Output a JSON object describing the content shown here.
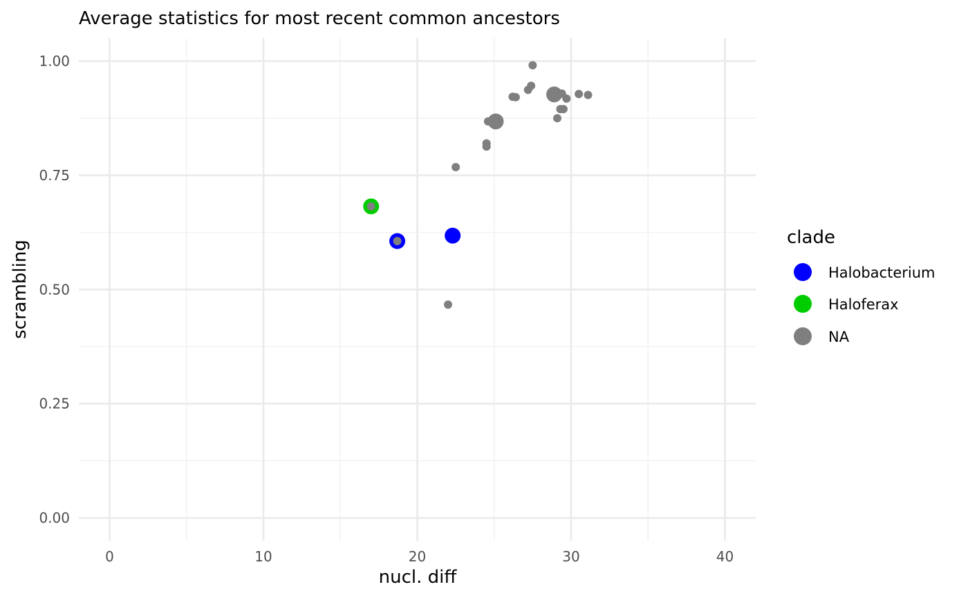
{
  "chart_data": {
    "type": "scatter",
    "title": "Average statistics for most recent common ancestors",
    "xlabel": "nucl. diff",
    "ylabel": "scrambling",
    "xlim": [
      -2,
      42
    ],
    "ylim": [
      -0.04,
      1.05
    ],
    "x_ticks": [
      0,
      10,
      20,
      30,
      40
    ],
    "x_tick_labels": [
      "0",
      "10",
      "20",
      "30",
      "40"
    ],
    "y_ticks": [
      0.0,
      0.25,
      0.5,
      0.75,
      1.0
    ],
    "y_tick_labels": [
      "0.00",
      "0.25",
      "0.50",
      "0.75",
      "1.00"
    ],
    "grid": true,
    "legend": {
      "title": "clade",
      "placement": "right",
      "entries": [
        {
          "label": "Halobacterium",
          "color": "#0000ff"
        },
        {
          "label": "Haloferax",
          "color": "#00cd00"
        },
        {
          "label": "NA",
          "color": "#7f7f7f"
        }
      ]
    },
    "series": [
      {
        "name": "Halobacterium",
        "color": "#0000ff",
        "points": [
          {
            "x": 18.7,
            "y": 0.606,
            "size": "large"
          },
          {
            "x": 22.3,
            "y": 0.618,
            "size": "large"
          }
        ]
      },
      {
        "name": "Haloferax",
        "color": "#00cd00",
        "points": [
          {
            "x": 17.0,
            "y": 0.682,
            "size": "large"
          }
        ]
      },
      {
        "name": "NA",
        "color": "#7f7f7f",
        "points": [
          {
            "x": 17.0,
            "y": 0.682,
            "size": "small"
          },
          {
            "x": 18.7,
            "y": 0.606,
            "size": "small"
          },
          {
            "x": 22.0,
            "y": 0.467,
            "size": "small"
          },
          {
            "x": 22.5,
            "y": 0.768,
            "size": "small"
          },
          {
            "x": 24.5,
            "y": 0.813,
            "size": "small"
          },
          {
            "x": 24.5,
            "y": 0.82,
            "size": "small"
          },
          {
            "x": 24.6,
            "y": 0.868,
            "size": "small"
          },
          {
            "x": 25.1,
            "y": 0.868,
            "size": "large"
          },
          {
            "x": 26.2,
            "y": 0.922,
            "size": "small"
          },
          {
            "x": 26.4,
            "y": 0.921,
            "size": "small"
          },
          {
            "x": 27.2,
            "y": 0.937,
            "size": "small"
          },
          {
            "x": 27.4,
            "y": 0.946,
            "size": "small"
          },
          {
            "x": 27.5,
            "y": 0.991,
            "size": "small"
          },
          {
            "x": 28.9,
            "y": 0.927,
            "size": "large"
          },
          {
            "x": 29.1,
            "y": 0.875,
            "size": "small"
          },
          {
            "x": 29.3,
            "y": 0.895,
            "size": "small"
          },
          {
            "x": 29.4,
            "y": 0.929,
            "size": "small"
          },
          {
            "x": 29.5,
            "y": 0.895,
            "size": "small"
          },
          {
            "x": 29.7,
            "y": 0.918,
            "size": "small"
          },
          {
            "x": 30.5,
            "y": 0.928,
            "size": "small"
          },
          {
            "x": 31.1,
            "y": 0.926,
            "size": "small"
          }
        ]
      }
    ]
  }
}
